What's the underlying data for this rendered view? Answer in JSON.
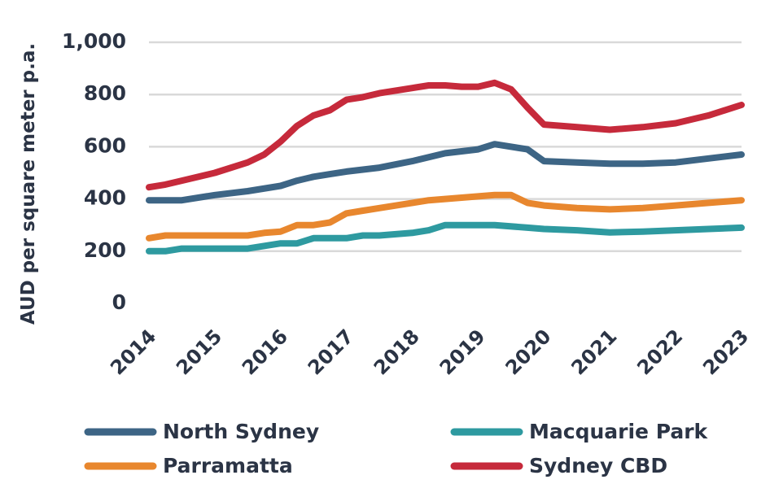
{
  "chart_data": {
    "type": "line",
    "title": "",
    "xlabel": "",
    "ylabel": "AUD per square meter p.a.",
    "ylim": [
      0,
      1000
    ],
    "yticks": [
      "0",
      "200",
      "400",
      "600",
      "800",
      "1,000"
    ],
    "ytick_values": [
      0,
      200,
      400,
      600,
      800,
      1000
    ],
    "xlim": [
      2014,
      2023
    ],
    "xticks": [
      "2014",
      "2015",
      "2016",
      "2017",
      "2018",
      "2019",
      "2020",
      "2021",
      "2022",
      "2023"
    ],
    "xtick_values": [
      2014,
      2015,
      2016,
      2017,
      2018,
      2019,
      2020,
      2021,
      2022,
      2023
    ],
    "grid": true,
    "legend_position": "bottom",
    "series": [
      {
        "name": "North Sydney",
        "color": "#3d6585",
        "x": [
          2014,
          2014.5,
          2015,
          2015.5,
          2016,
          2016.25,
          2016.5,
          2016.75,
          2017,
          2017.5,
          2018,
          2018.5,
          2019,
          2019.25,
          2019.75,
          2020,
          2020.5,
          2021,
          2021.5,
          2022,
          2022.5,
          2023
        ],
        "y": [
          395,
          395,
          415,
          430,
          450,
          470,
          485,
          495,
          505,
          520,
          545,
          575,
          590,
          610,
          590,
          545,
          540,
          535,
          535,
          540,
          555,
          570
        ]
      },
      {
        "name": "Macquarie Park",
        "color": "#2e9aa0",
        "x": [
          2014,
          2014.25,
          2014.5,
          2015,
          2015.5,
          2016,
          2016.25,
          2016.5,
          2017,
          2017.25,
          2017.5,
          2018,
          2018.25,
          2018.5,
          2019,
          2019.25,
          2019.75,
          2020,
          2020.5,
          2021,
          2021.5,
          2022,
          2022.5,
          2023
        ],
        "y": [
          200,
          200,
          210,
          210,
          210,
          230,
          230,
          250,
          250,
          260,
          260,
          270,
          280,
          300,
          300,
          300,
          290,
          285,
          280,
          272,
          275,
          280,
          285,
          290
        ]
      },
      {
        "name": "Parramatta",
        "color": "#e8872e",
        "x": [
          2014,
          2014.25,
          2014.5,
          2015,
          2015.5,
          2015.75,
          2016,
          2016.25,
          2016.5,
          2016.75,
          2017,
          2017.25,
          2017.5,
          2018,
          2018.25,
          2018.5,
          2019,
          2019.25,
          2019.5,
          2019.75,
          2020,
          2020.5,
          2021,
          2021.5,
          2022,
          2022.5,
          2023
        ],
        "y": [
          250,
          260,
          260,
          260,
          260,
          270,
          275,
          300,
          300,
          310,
          345,
          355,
          365,
          385,
          395,
          400,
          410,
          415,
          415,
          385,
          375,
          365,
          360,
          365,
          375,
          385,
          395
        ]
      },
      {
        "name": "Sydney CBD",
        "color": "#c62a3b",
        "x": [
          2014,
          2014.25,
          2014.5,
          2015,
          2015.5,
          2015.75,
          2016,
          2016.25,
          2016.5,
          2016.75,
          2017,
          2017.25,
          2017.5,
          2018,
          2018.25,
          2018.5,
          2018.75,
          2019,
          2019.25,
          2019.5,
          2019.75,
          2020,
          2020.5,
          2021,
          2021.5,
          2022,
          2022.5,
          2023
        ],
        "y": [
          445,
          455,
          470,
          500,
          540,
          570,
          620,
          680,
          720,
          740,
          780,
          790,
          805,
          825,
          835,
          835,
          830,
          830,
          845,
          820,
          750,
          685,
          675,
          665,
          675,
          690,
          720,
          760
        ]
      }
    ]
  },
  "legend": {
    "items": [
      {
        "label": "North Sydney",
        "color": "#3d6585"
      },
      {
        "label": "Macquarie Park",
        "color": "#2e9aa0"
      },
      {
        "label": "Parramatta",
        "color": "#e8872e"
      },
      {
        "label": "Sydney CBD",
        "color": "#c62a3b"
      }
    ]
  }
}
